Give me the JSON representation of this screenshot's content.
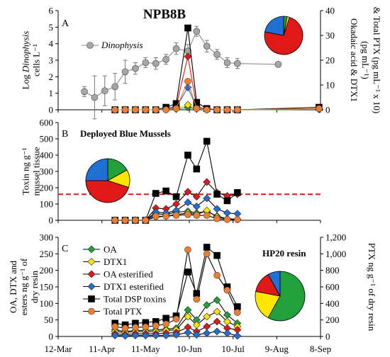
{
  "chart_data": [
    {
      "panel": "A",
      "type": "line",
      "title": "NPB8B",
      "ylabel_lines": [
        "Log Dinophysis",
        "cells L⁻¹"
      ],
      "y2label_lines": [
        "Okadaic acid & DTX1",
        "(pg mL⁻¹)",
        "& Total PTX (pg mL⁻¹ x 10)"
      ],
      "ylim": [
        0,
        6
      ],
      "y2lim": [
        0,
        40
      ],
      "yticks": [
        0,
        1,
        2,
        3,
        4,
        5,
        6
      ],
      "y2ticks": [
        0,
        10,
        20,
        30,
        40
      ],
      "series": [
        {
          "name": "Dinophysis",
          "axis": "left",
          "color": "#a6a6a6",
          "marker": "circle",
          "x": [
            "2019-03-30",
            "2019-04-06",
            "2019-04-13",
            "2019-04-20",
            "2019-04-27",
            "2019-05-04",
            "2019-05-11",
            "2019-05-18",
            "2019-05-25",
            "2019-06-01",
            "2019-06-09",
            "2019-06-15",
            "2019-06-22",
            "2019-06-29",
            "2019-07-06",
            "2019-07-13",
            "2019-08-10"
          ],
          "values": [
            1.1,
            0.75,
            1.15,
            1.4,
            2.3,
            2.5,
            2.85,
            2.8,
            3.05,
            3.7,
            3.55,
            4.75,
            3.85,
            3.35,
            2.85,
            2.8,
            2.75
          ],
          "error": [
            0.3,
            1.3,
            0.9,
            0.8,
            0.7,
            0.35,
            0.3,
            0.35,
            0.3,
            0.35,
            0.4,
            0.3,
            0.35,
            0.3,
            0.3,
            0.3,
            0.0
          ]
        },
        {
          "name": "OA",
          "axis": "right",
          "color": "#22a03a",
          "marker": "diamond",
          "x": [
            "2019-04-20",
            "2019-04-27",
            "2019-05-04",
            "2019-05-11",
            "2019-05-18",
            "2019-05-25",
            "2019-06-01",
            "2019-06-09",
            "2019-06-15",
            "2019-06-22",
            "2019-06-29",
            "2019-07-06",
            "2019-07-13",
            "2019-09-07"
          ],
          "values": [
            0,
            0,
            0,
            0,
            0,
            0.1,
            0.3,
            1,
            0.3,
            0,
            0,
            0,
            0,
            0.2
          ]
        },
        {
          "name": "DTX1",
          "axis": "right",
          "color": "#ffe600",
          "marker": "diamond",
          "x": [
            "2019-04-20",
            "2019-04-27",
            "2019-05-04",
            "2019-05-11",
            "2019-05-18",
            "2019-05-25",
            "2019-06-01",
            "2019-06-09",
            "2019-06-15",
            "2019-06-22",
            "2019-06-29",
            "2019-07-06",
            "2019-07-13",
            "2019-09-07"
          ],
          "values": [
            0,
            0,
            0,
            0,
            0,
            0.1,
            0.5,
            2,
            0.5,
            0,
            0,
            0,
            0,
            0.2
          ]
        },
        {
          "name": "OA esterified",
          "axis": "right",
          "color": "#e01818",
          "marker": "diamond",
          "x": [
            "2019-04-20",
            "2019-04-27",
            "2019-05-04",
            "2019-05-11",
            "2019-05-18",
            "2019-05-25",
            "2019-06-01",
            "2019-06-09",
            "2019-06-15",
            "2019-06-22",
            "2019-06-29",
            "2019-07-06",
            "2019-07-13",
            "2019-09-07"
          ],
          "values": [
            0,
            0,
            0,
            0,
            0,
            0.3,
            1.5,
            21.5,
            1.5,
            0,
            0,
            0,
            0,
            0.5
          ]
        },
        {
          "name": "DTX1 esterified",
          "axis": "right",
          "color": "#1f6fd4",
          "marker": "diamond",
          "x": [
            "2019-04-20",
            "2019-04-27",
            "2019-05-04",
            "2019-05-11",
            "2019-05-18",
            "2019-05-25",
            "2019-06-01",
            "2019-06-09",
            "2019-06-15",
            "2019-06-22",
            "2019-06-29",
            "2019-07-06",
            "2019-07-13",
            "2019-09-07"
          ],
          "values": [
            0,
            0,
            0,
            0,
            0,
            0.2,
            1,
            9,
            1,
            0,
            0,
            0,
            0,
            0.3
          ]
        },
        {
          "name": "Total DSP toxins",
          "axis": "right",
          "color": "#000000",
          "marker": "square",
          "x": [
            "2019-04-20",
            "2019-04-27",
            "2019-05-04",
            "2019-05-11",
            "2019-05-18",
            "2019-05-25",
            "2019-06-01",
            "2019-06-09",
            "2019-06-15",
            "2019-06-22",
            "2019-06-29",
            "2019-07-06",
            "2019-07-13",
            "2019-09-07"
          ],
          "values": [
            0,
            0,
            0,
            0,
            0,
            1,
            2.5,
            33,
            3,
            0.5,
            0,
            0,
            0,
            1
          ]
        },
        {
          "name": "Total PTX",
          "axis": "right",
          "color": "#ed7d31",
          "marker": "circle",
          "x": [
            "2019-04-20",
            "2019-04-27",
            "2019-05-04",
            "2019-05-11",
            "2019-05-18",
            "2019-05-25",
            "2019-06-01",
            "2019-06-09",
            "2019-06-15",
            "2019-06-22",
            "2019-06-29",
            "2019-07-06",
            "2019-07-13",
            "2019-09-07"
          ],
          "values": [
            0,
            0,
            0,
            0,
            0,
            0,
            0.5,
            11.5,
            0.5,
            0,
            0,
            0,
            0,
            0.5
          ]
        }
      ],
      "legend": [
        "Dinophysis"
      ],
      "pie": {
        "values": [
          0.03,
          0.02,
          0.73,
          0.22
        ],
        "colors": [
          "#22a03a",
          "#ffe600",
          "#e01818",
          "#1f6fd4"
        ]
      }
    },
    {
      "panel": "B",
      "type": "line",
      "title": "Deployed Blue Mussels",
      "ylabel_lines": [
        "Toxin ng g⁻¹",
        "mussel tissue"
      ],
      "ylim": [
        0,
        600
      ],
      "yticks": [
        0,
        100,
        200,
        300,
        400,
        500,
        600
      ],
      "threshold": 160,
      "series": [
        {
          "name": "OA",
          "color": "#22a03a",
          "marker": "diamond",
          "x": [
            "2019-04-20",
            "2019-04-27",
            "2019-05-04",
            "2019-05-11",
            "2019-05-18",
            "2019-05-25",
            "2019-06-01",
            "2019-06-09",
            "2019-06-15",
            "2019-06-22",
            "2019-06-29",
            "2019-07-06",
            "2019-07-13"
          ],
          "values": [
            0,
            0,
            0,
            0,
            40,
            35,
            50,
            55,
            45,
            55,
            25,
            10,
            5
          ]
        },
        {
          "name": "DTX1",
          "color": "#ffe600",
          "marker": "diamond",
          "x": [
            "2019-04-20",
            "2019-04-27",
            "2019-05-04",
            "2019-05-11",
            "2019-05-18",
            "2019-05-25",
            "2019-06-01",
            "2019-06-09",
            "2019-06-15",
            "2019-06-22",
            "2019-06-29",
            "2019-07-06",
            "2019-07-13"
          ],
          "values": [
            0,
            0,
            0,
            0,
            20,
            25,
            35,
            45,
            35,
            60,
            20,
            10,
            5
          ]
        },
        {
          "name": "OA esterified",
          "color": "#e01818",
          "marker": "diamond",
          "x": [
            "2019-04-20",
            "2019-04-27",
            "2019-05-04",
            "2019-05-11",
            "2019-05-18",
            "2019-05-25",
            "2019-06-01",
            "2019-06-09",
            "2019-06-15",
            "2019-06-22",
            "2019-06-29",
            "2019-07-06",
            "2019-07-13"
          ],
          "values": [
            0,
            0,
            0,
            0,
            75,
            70,
            100,
            175,
            145,
            235,
            170,
            150,
            160
          ]
        },
        {
          "name": "DTX1 esterified",
          "color": "#1f6fd4",
          "marker": "diamond",
          "x": [
            "2019-04-20",
            "2019-04-27",
            "2019-05-04",
            "2019-05-11",
            "2019-05-18",
            "2019-05-25",
            "2019-06-01",
            "2019-06-09",
            "2019-06-15",
            "2019-06-22",
            "2019-06-29",
            "2019-07-06",
            "2019-07-13"
          ],
          "values": [
            0,
            0,
            0,
            0,
            50,
            45,
            60,
            110,
            85,
            135,
            70,
            45,
            40
          ]
        },
        {
          "name": "Total DSP toxins",
          "color": "#000000",
          "marker": "square",
          "x": [
            "2019-04-20",
            "2019-04-27",
            "2019-05-04",
            "2019-05-11",
            "2019-05-18",
            "2019-05-25",
            "2019-06-01",
            "2019-06-09",
            "2019-06-15",
            "2019-06-22",
            "2019-06-29",
            "2019-07-06",
            "2019-07-13"
          ],
          "values": [
            0,
            0,
            0,
            0,
            165,
            180,
            145,
            400,
            315,
            485,
            160,
            120,
            170
          ]
        },
        {
          "name": "Total PTX",
          "color": "#ed7d31",
          "marker": "circle",
          "x": [
            "2019-04-20",
            "2019-04-27",
            "2019-05-04",
            "2019-05-11",
            "2019-05-18",
            "2019-05-25",
            "2019-06-01",
            "2019-06-09",
            "2019-06-15",
            "2019-06-22",
            "2019-06-29",
            "2019-07-06",
            "2019-07-13"
          ],
          "values": [
            0,
            0,
            0,
            0,
            25,
            25,
            30,
            35,
            30,
            30,
            10,
            5,
            5
          ]
        }
      ],
      "pie": {
        "values": [
          0.17,
          0.13,
          0.45,
          0.25
        ],
        "colors": [
          "#22a03a",
          "#ffe600",
          "#e01818",
          "#1f6fd4"
        ]
      }
    },
    {
      "panel": "C",
      "type": "line",
      "title": "HP20 resin",
      "ylabel_lines": [
        "OA, DTX and",
        "esters ng g⁻¹ of",
        "dry resin"
      ],
      "y2label_lines": [
        "PTX ng g⁻¹ of dry resin"
      ],
      "ylim": [
        0,
        300
      ],
      "y2lim": [
        0,
        1200
      ],
      "yticks": [
        0,
        50,
        100,
        150,
        200,
        250,
        300
      ],
      "y2ticks": [
        "0",
        "200",
        "400",
        "600",
        "800",
        "1,000",
        "1,200"
      ],
      "x_tick_labels": [
        "12-Mar",
        "11-Apr",
        "11-May",
        "10-Jun",
        "10-Jul",
        "9-Aug",
        "8-Sep"
      ],
      "series": [
        {
          "name": "OA",
          "axis": "left",
          "color": "#22a03a",
          "marker": "diamond",
          "x": [
            "2019-04-20",
            "2019-04-27",
            "2019-05-04",
            "2019-05-11",
            "2019-05-18",
            "2019-05-25",
            "2019-06-01",
            "2019-06-09",
            "2019-06-15",
            "2019-06-22",
            "2019-06-29",
            "2019-07-06",
            "2019-07-13"
          ],
          "values": [
            20,
            15,
            18,
            18,
            20,
            22,
            25,
            80,
            50,
            95,
            110,
            65,
            40
          ]
        },
        {
          "name": "DTX1",
          "axis": "left",
          "color": "#ffe600",
          "marker": "diamond",
          "x": [
            "2019-04-20",
            "2019-04-27",
            "2019-05-04",
            "2019-05-11",
            "2019-05-18",
            "2019-05-25",
            "2019-06-01",
            "2019-06-09",
            "2019-06-15",
            "2019-06-22",
            "2019-06-29",
            "2019-07-06",
            "2019-07-13"
          ],
          "values": [
            15,
            12,
            15,
            14,
            15,
            18,
            20,
            60,
            35,
            60,
            75,
            45,
            30
          ]
        },
        {
          "name": "OA esterified",
          "axis": "left",
          "color": "#e01818",
          "marker": "diamond",
          "x": [
            "2019-04-20",
            "2019-04-27",
            "2019-05-04",
            "2019-05-11",
            "2019-05-18",
            "2019-05-25",
            "2019-06-01",
            "2019-06-09",
            "2019-06-15",
            "2019-06-22",
            "2019-06-29",
            "2019-07-06",
            "2019-07-13"
          ],
          "values": [
            8,
            6,
            8,
            8,
            8,
            10,
            12,
            28,
            15,
            30,
            45,
            25,
            20
          ]
        },
        {
          "name": "DTX1 esterified",
          "axis": "left",
          "color": "#1f6fd4",
          "marker": "diamond",
          "x": [
            "2019-04-20",
            "2019-04-27",
            "2019-05-04",
            "2019-05-11",
            "2019-05-18",
            "2019-05-25",
            "2019-06-01",
            "2019-06-09",
            "2019-06-15",
            "2019-06-22",
            "2019-06-29",
            "2019-07-06",
            "2019-07-13"
          ],
          "values": [
            3,
            2,
            3,
            3,
            3,
            3,
            5,
            12,
            5,
            10,
            15,
            10,
            2
          ]
        },
        {
          "name": "Total DSP toxins",
          "axis": "left",
          "color": "#000000",
          "marker": "square",
          "x": [
            "2019-04-20",
            "2019-04-27",
            "2019-05-04",
            "2019-05-11",
            "2019-05-18",
            "2019-05-25",
            "2019-06-01",
            "2019-06-09",
            "2019-06-15",
            "2019-06-22",
            "2019-06-29",
            "2019-07-06",
            "2019-07-13"
          ],
          "values": [
            40,
            35,
            40,
            42,
            45,
            55,
            62,
            195,
            130,
            270,
            245,
            150,
            90
          ]
        },
        {
          "name": "Total PTX",
          "axis": "right",
          "color": "#ed7d31",
          "marker": "circle",
          "x": [
            "2019-04-20",
            "2019-04-27",
            "2019-05-04",
            "2019-05-11",
            "2019-05-18",
            "2019-05-25",
            "2019-06-01",
            "2019-06-09",
            "2019-06-15",
            "2019-06-22",
            "2019-06-29",
            "2019-07-06",
            "2019-07-13"
          ],
          "values": [
            120,
            100,
            110,
            115,
            130,
            150,
            210,
            1050,
            450,
            1000,
            740,
            560,
            290
          ]
        }
      ],
      "legend": [
        "OA",
        "DTX1",
        "OA esterified",
        "DTX1 esterified",
        "Total DSP toxins",
        "Total PTX"
      ],
      "pie": {
        "values": [
          0.58,
          0.2,
          0.14,
          0.08
        ],
        "colors": [
          "#22a03a",
          "#ffe600",
          "#e01818",
          "#1f6fd4"
        ]
      }
    }
  ]
}
